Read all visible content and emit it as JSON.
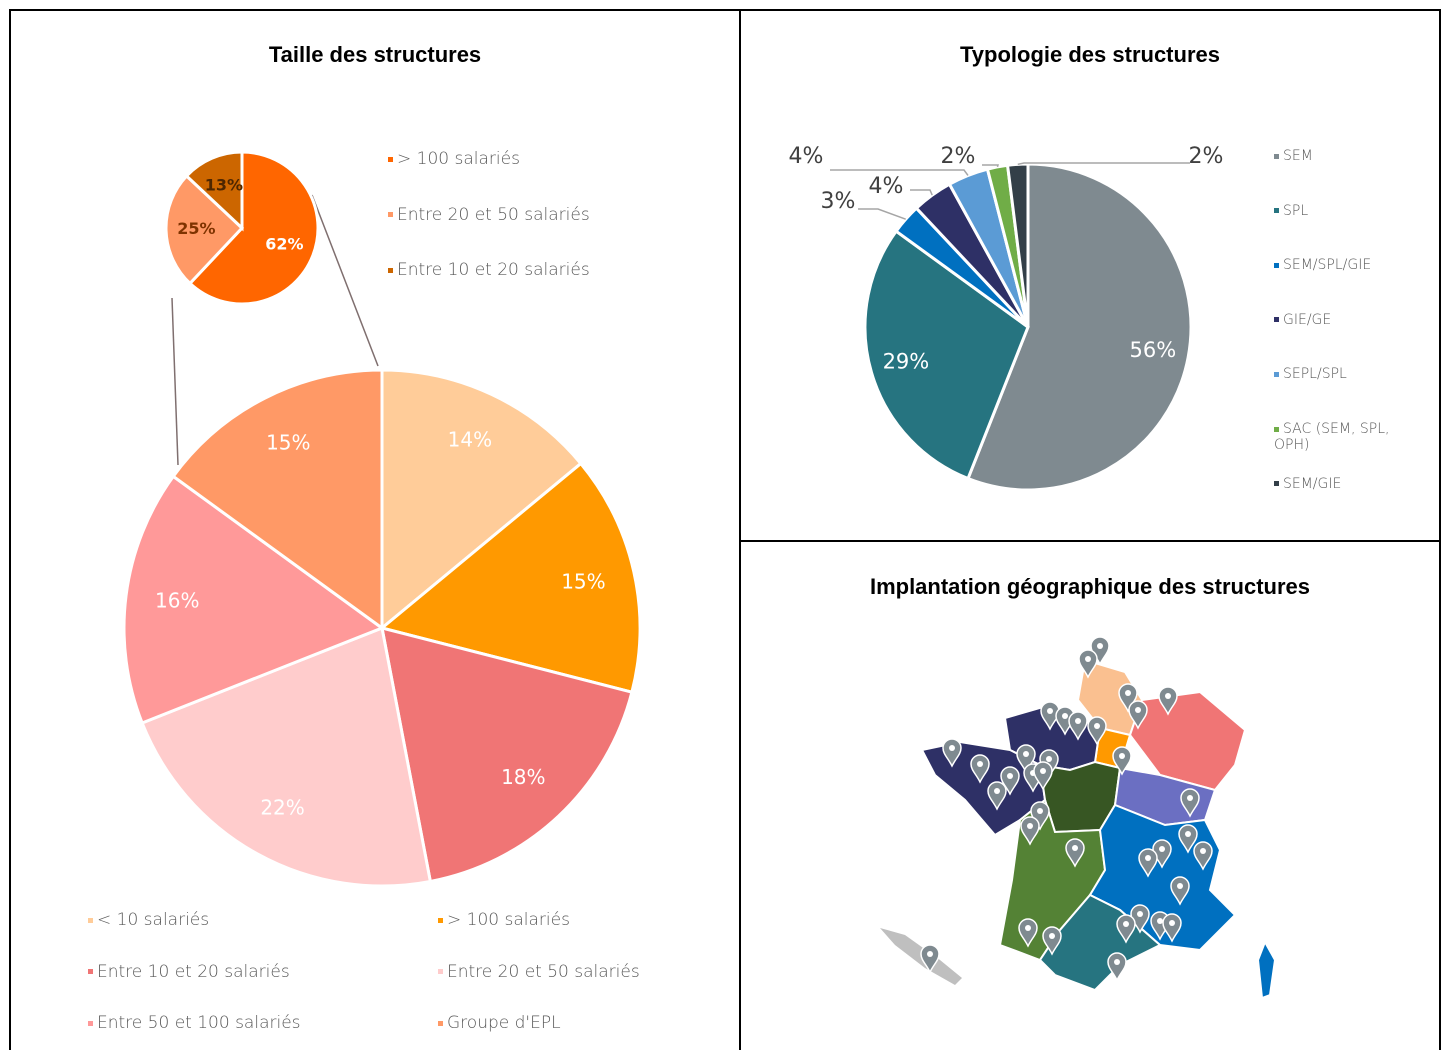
{
  "chart_data": [
    {
      "type": "pie",
      "title": "Taille des structures",
      "categories": [
        "< 10 salariés",
        "> 100 salariés",
        "Entre 10 et 20 salariés",
        "Entre 20 et 50 salariés",
        "Entre 50 et 100 salariés",
        "Groupe d'EPL"
      ],
      "values": [
        14,
        15,
        18,
        22,
        16,
        15
      ],
      "value_labels": [
        "14%",
        "15%",
        "18%",
        "22%",
        "16%",
        "15%"
      ],
      "colors": [
        "#FFCC99",
        "#FF9900",
        "#F07575",
        "#FFCCCC",
        "#FF9999",
        "#FF9966"
      ],
      "legend": "bottom"
    },
    {
      "type": "pie",
      "categories": [
        "> 100 salariés",
        "Entre 20 et 50 salariés",
        "Entre 10 et 20 salariés"
      ],
      "values": [
        62,
        25,
        13
      ],
      "value_labels": [
        "62%",
        "25%",
        "13%"
      ],
      "colors": [
        "#FF6600",
        "#FF9966",
        "#CC6600"
      ],
      "legend": "right"
    },
    {
      "type": "pie",
      "title": "Typologie des structures",
      "categories": [
        "SEM",
        "SPL",
        "SEM/SPL/GIE",
        "GIE/GE",
        "SEPL/SPL",
        "SAC (SEM, SPL, OPH)",
        "SEM/GIE"
      ],
      "values": [
        56,
        29,
        3,
        4,
        4,
        2,
        2
      ],
      "value_labels": [
        "56%",
        "29%",
        "3%",
        "4%",
        "4%",
        "2%",
        "2%"
      ],
      "colors": [
        "#7F8A90",
        "#267480",
        "#0070C0",
        "#2E3066",
        "#5B9BD5",
        "#70AD47",
        "#333F48"
      ],
      "legend": "right"
    }
  ],
  "map": {
    "title": "Implantation géographique des structures"
  }
}
